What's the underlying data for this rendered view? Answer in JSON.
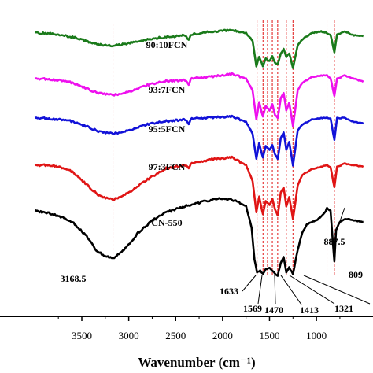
{
  "chart_data": {
    "type": "line",
    "xlabel": "Wavenumber (cm⁻¹)",
    "x_reversed": true,
    "xlim": [
      4000,
      500
    ],
    "x_ticks": [
      {
        "value": 3500,
        "label": "3500"
      },
      {
        "value": 3000,
        "label": "3000"
      },
      {
        "value": 2500,
        "label": "2500"
      },
      {
        "value": 2000,
        "label": "2000"
      },
      {
        "value": 1500,
        "label": "1500"
      },
      {
        "value": 1000,
        "label": "1000"
      }
    ],
    "series": [
      {
        "name": "90:10FCN",
        "color": "#1a7a1a",
        "points": [
          [
            4000,
            42
          ],
          [
            3800,
            43
          ],
          [
            3600,
            47
          ],
          [
            3400,
            54
          ],
          [
            3300,
            57
          ],
          [
            3168.5,
            58
          ],
          [
            3000,
            55
          ],
          [
            2800,
            50
          ],
          [
            2600,
            47
          ],
          [
            2400,
            45
          ],
          [
            2361,
            51
          ],
          [
            2340,
            44
          ],
          [
            2100,
            40
          ],
          [
            1900,
            38
          ],
          [
            1750,
            42
          ],
          [
            1680,
            52
          ],
          [
            1640,
            84
          ],
          [
            1610,
            72
          ],
          [
            1570,
            84
          ],
          [
            1540,
            74
          ],
          [
            1500,
            78
          ],
          [
            1470,
            72
          ],
          [
            1440,
            80
          ],
          [
            1413,
            82
          ],
          [
            1380,
            68
          ],
          [
            1350,
            62
          ],
          [
            1321,
            72
          ],
          [
            1290,
            68
          ],
          [
            1250,
            86
          ],
          [
            1200,
            58
          ],
          [
            1150,
            50
          ],
          [
            1050,
            42
          ],
          [
            950,
            40
          ],
          [
            887.5,
            42
          ],
          [
            850,
            44
          ],
          [
            809,
            66
          ],
          [
            780,
            44
          ],
          [
            700,
            40
          ],
          [
            600,
            45
          ],
          [
            500,
            46
          ]
        ]
      },
      {
        "name": "93:7FCN",
        "color": "#ee10ee",
        "points": [
          [
            4000,
            100
          ],
          [
            3800,
            101
          ],
          [
            3600,
            105
          ],
          [
            3400,
            115
          ],
          [
            3300,
            119
          ],
          [
            3168.5,
            121
          ],
          [
            3000,
            117
          ],
          [
            2800,
            108
          ],
          [
            2600,
            103
          ],
          [
            2400,
            102
          ],
          [
            2361,
            108
          ],
          [
            2340,
            100
          ],
          [
            2100,
            97
          ],
          [
            1900,
            94
          ],
          [
            1750,
            100
          ],
          [
            1680,
            115
          ],
          [
            1640,
            152
          ],
          [
            1610,
            130
          ],
          [
            1570,
            148
          ],
          [
            1540,
            135
          ],
          [
            1500,
            140
          ],
          [
            1470,
            132
          ],
          [
            1440,
            146
          ],
          [
            1413,
            150
          ],
          [
            1380,
            125
          ],
          [
            1350,
            118
          ],
          [
            1321,
            140
          ],
          [
            1290,
            130
          ],
          [
            1250,
            160
          ],
          [
            1200,
            115
          ],
          [
            1150,
            105
          ],
          [
            1050,
            98
          ],
          [
            950,
            96
          ],
          [
            887.5,
            96
          ],
          [
            850,
            99
          ],
          [
            809,
            122
          ],
          [
            780,
            100
          ],
          [
            700,
            96
          ],
          [
            600,
            100
          ],
          [
            500,
            104
          ]
        ]
      },
      {
        "name": "95:5FCN",
        "color": "#1212d8",
        "points": [
          [
            4000,
            150
          ],
          [
            3800,
            151
          ],
          [
            3600,
            154
          ],
          [
            3400,
            163
          ],
          [
            3300,
            168
          ],
          [
            3168.5,
            170
          ],
          [
            3000,
            166
          ],
          [
            2800,
            158
          ],
          [
            2600,
            154
          ],
          [
            2400,
            152
          ],
          [
            2361,
            158
          ],
          [
            2340,
            151
          ],
          [
            2100,
            149
          ],
          [
            1900,
            148
          ],
          [
            1750,
            155
          ],
          [
            1680,
            170
          ],
          [
            1640,
            202
          ],
          [
            1610,
            182
          ],
          [
            1570,
            200
          ],
          [
            1540,
            186
          ],
          [
            1500,
            190
          ],
          [
            1470,
            184
          ],
          [
            1440,
            196
          ],
          [
            1413,
            202
          ],
          [
            1380,
            176
          ],
          [
            1350,
            168
          ],
          [
            1321,
            190
          ],
          [
            1290,
            180
          ],
          [
            1250,
            210
          ],
          [
            1200,
            166
          ],
          [
            1150,
            158
          ],
          [
            1050,
            152
          ],
          [
            950,
            150
          ],
          [
            887.5,
            150
          ],
          [
            850,
            150
          ],
          [
            809,
            178
          ],
          [
            780,
            150
          ],
          [
            700,
            150
          ],
          [
            600,
            155
          ],
          [
            500,
            157
          ]
        ]
      },
      {
        "name": "97:3FCN",
        "color": "#e01515",
        "points": [
          [
            4000,
            210
          ],
          [
            3800,
            210
          ],
          [
            3600,
            218
          ],
          [
            3400,
            240
          ],
          [
            3300,
            250
          ],
          [
            3168.5,
            254
          ],
          [
            3000,
            245
          ],
          [
            2800,
            228
          ],
          [
            2600,
            214
          ],
          [
            2400,
            210
          ],
          [
            2361,
            214
          ],
          [
            2340,
            208
          ],
          [
            2100,
            202
          ],
          [
            1900,
            200
          ],
          [
            1750,
            210
          ],
          [
            1680,
            230
          ],
          [
            1640,
            270
          ],
          [
            1610,
            250
          ],
          [
            1570,
            272
          ],
          [
            1540,
            256
          ],
          [
            1500,
            260
          ],
          [
            1470,
            252
          ],
          [
            1440,
            266
          ],
          [
            1413,
            274
          ],
          [
            1380,
            245
          ],
          [
            1350,
            238
          ],
          [
            1321,
            262
          ],
          [
            1290,
            250
          ],
          [
            1250,
            278
          ],
          [
            1200,
            236
          ],
          [
            1150,
            222
          ],
          [
            1050,
            215
          ],
          [
            950,
            212
          ],
          [
            887.5,
            210
          ],
          [
            850,
            212
          ],
          [
            809,
            238
          ],
          [
            780,
            212
          ],
          [
            700,
            208
          ],
          [
            600,
            210
          ],
          [
            500,
            212
          ]
        ]
      },
      {
        "name": "CN-550",
        "color": "#000000",
        "points": [
          [
            4000,
            268
          ],
          [
            3800,
            272
          ],
          [
            3600,
            282
          ],
          [
            3450,
            300
          ],
          [
            3350,
            318
          ],
          [
            3250,
            326
          ],
          [
            3168.5,
            328
          ],
          [
            3050,
            318
          ],
          [
            2900,
            296
          ],
          [
            2750,
            280
          ],
          [
            2600,
            270
          ],
          [
            2400,
            262
          ],
          [
            2200,
            256
          ],
          [
            2000,
            252
          ],
          [
            1850,
            255
          ],
          [
            1750,
            262
          ],
          [
            1690,
            290
          ],
          [
            1660,
            330
          ],
          [
            1633,
            346
          ],
          [
            1600,
            344
          ],
          [
            1569,
            348
          ],
          [
            1540,
            342
          ],
          [
            1500,
            340
          ],
          [
            1470,
            344
          ],
          [
            1440,
            348
          ],
          [
            1413,
            350
          ],
          [
            1380,
            334
          ],
          [
            1350,
            326
          ],
          [
            1321,
            346
          ],
          [
            1290,
            340
          ],
          [
            1250,
            348
          ],
          [
            1200,
            318
          ],
          [
            1150,
            295
          ],
          [
            1100,
            285
          ],
          [
            1050,
            282
          ],
          [
            1000,
            280
          ],
          [
            950,
            275
          ],
          [
            900,
            268
          ],
          [
            887.5,
            264
          ],
          [
            850,
            268
          ],
          [
            809,
            332
          ],
          [
            790,
            292
          ],
          [
            750,
            282
          ],
          [
            700,
            278
          ],
          [
            600,
            280
          ],
          [
            500,
            282
          ]
        ]
      }
    ],
    "series_labels": [
      "90:10FCN",
      "93:7FCN",
      "95:5FCN",
      "97:3FCN",
      "CN-550"
    ],
    "peak_labels": [
      {
        "value": 3168.5,
        "label": "3168.5"
      },
      {
        "value": 1633,
        "label": "1633"
      },
      {
        "value": 1569,
        "label": "1569"
      },
      {
        "value": 1470,
        "label": "1470"
      },
      {
        "value": 1413,
        "label": "1413"
      },
      {
        "value": 1321,
        "label": "1321"
      },
      {
        "value": 887.5,
        "label": "887.5"
      },
      {
        "value": 809,
        "label": "809"
      }
    ],
    "reference_lines": [
      3168.5,
      1633,
      1569,
      1521,
      1470,
      1413,
      1321,
      1250,
      887.5,
      809
    ],
    "grid": false,
    "legend": "inline labels"
  }
}
